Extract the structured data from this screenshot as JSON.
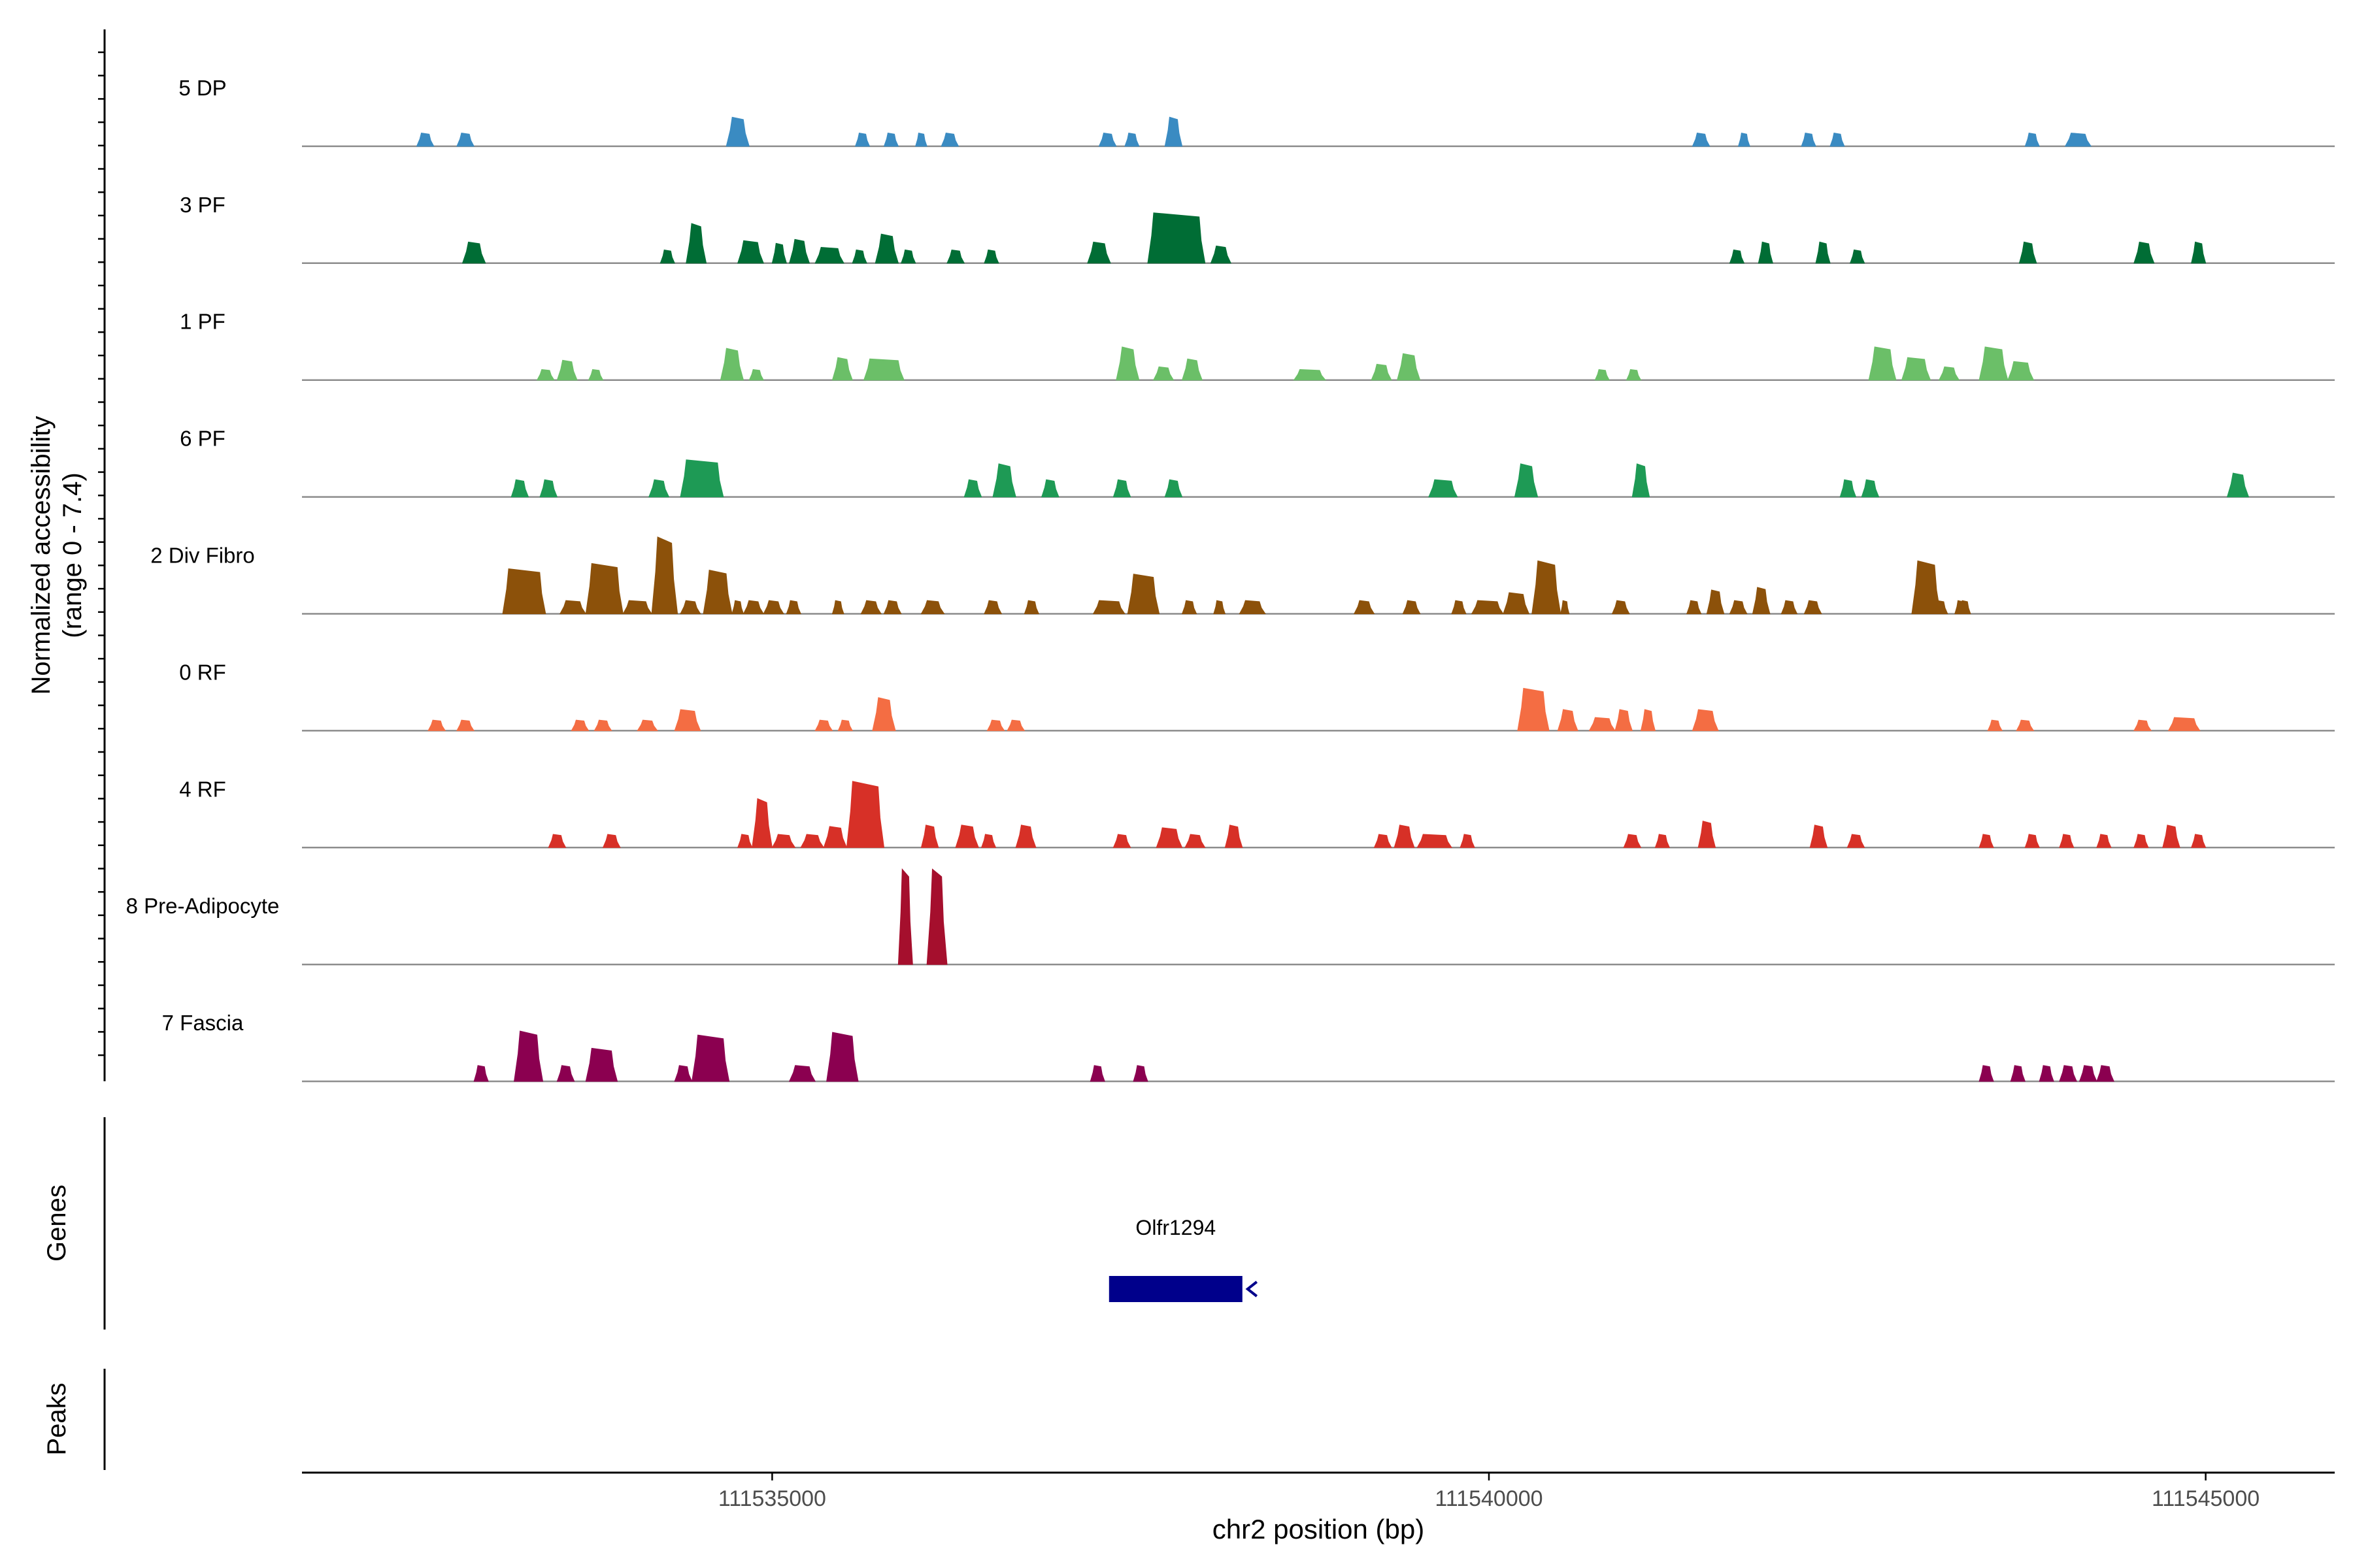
{
  "chart_data": {
    "type": "coverage",
    "title": "",
    "ylabel": "Normalized accessibility",
    "ylabel_range": "(range 0 - 7.4)",
    "ylim": [
      0,
      7.4
    ],
    "xlabel": "chr2 position (bp)",
    "xlim": [
      111531720,
      111545900
    ],
    "x_ticks": [
      111535000,
      111540000,
      111545000
    ],
    "x_tick_labels": [
      "111535000",
      "111540000",
      "111545000"
    ],
    "genes_label": "Genes",
    "peaks_label": "Peaks",
    "genes": [
      {
        "name": "Olfr1294",
        "start": 111537350,
        "end": 111538280,
        "strand": "-",
        "color": "#00008B"
      }
    ],
    "series": [
      {
        "name": "5 DP",
        "color": "#3A8BC2",
        "peaks": [
          [
            111532520,
            111532640,
            1.0
          ],
          [
            111532800,
            111532920,
            1.0
          ],
          [
            111534680,
            111534840,
            2.2
          ],
          [
            111535580,
            111535680,
            1.0
          ],
          [
            111535780,
            111535880,
            1.0
          ],
          [
            111536000,
            111536080,
            1.0
          ],
          [
            111536180,
            111536300,
            1.0
          ],
          [
            111537280,
            111537400,
            1.0
          ],
          [
            111537460,
            111537560,
            1.0
          ],
          [
            111537740,
            111537860,
            2.2
          ],
          [
            111541420,
            111541540,
            1.0
          ],
          [
            111541740,
            111541820,
            1.0
          ],
          [
            111542180,
            111542280,
            1.0
          ],
          [
            111542380,
            111542480,
            1.0
          ],
          [
            111543740,
            111543840,
            1.0
          ],
          [
            111544020,
            111544200,
            1.0
          ]
        ]
      },
      {
        "name": "3 PF",
        "color": "#006D35",
        "peaks": [
          [
            111532840,
            111533000,
            1.6
          ],
          [
            111534220,
            111534320,
            1.0
          ],
          [
            111534400,
            111534540,
            3.0
          ],
          [
            111534760,
            111534940,
            1.7
          ],
          [
            111535000,
            111535100,
            1.5
          ],
          [
            111535120,
            111535260,
            1.8
          ],
          [
            111535300,
            111535500,
            1.2
          ],
          [
            111535560,
            111535660,
            1.0
          ],
          [
            111535720,
            111535880,
            2.2
          ],
          [
            111535900,
            111536000,
            1.0
          ],
          [
            111536220,
            111536340,
            1.0
          ],
          [
            111536480,
            111536580,
            1.0
          ],
          [
            111537200,
            111537360,
            1.6
          ],
          [
            111537620,
            111538020,
            3.8
          ],
          [
            111538060,
            111538200,
            1.3
          ],
          [
            111541680,
            111541780,
            1.0
          ],
          [
            111541880,
            111541980,
            1.6
          ],
          [
            111542280,
            111542380,
            1.6
          ],
          [
            111542520,
            111542620,
            1.0
          ],
          [
            111543700,
            111543820,
            1.6
          ],
          [
            111544500,
            111544640,
            1.6
          ],
          [
            111544900,
            111545000,
            1.6
          ]
        ]
      },
      {
        "name": "1 PF",
        "color": "#6BBF68",
        "peaks": [
          [
            111533360,
            111533480,
            0.8
          ],
          [
            111533500,
            111533640,
            1.5
          ],
          [
            111533720,
            111533820,
            0.8
          ],
          [
            111534640,
            111534800,
            2.4
          ],
          [
            111534840,
            111534940,
            0.8
          ],
          [
            111535420,
            111535560,
            1.7
          ],
          [
            111535640,
            111535920,
            1.6
          ],
          [
            111537400,
            111537560,
            2.5
          ],
          [
            111537660,
            111537800,
            1.0
          ],
          [
            111537860,
            111538000,
            1.6
          ],
          [
            111538640,
            111538860,
            0.8
          ],
          [
            111539180,
            111539320,
            1.2
          ],
          [
            111539360,
            111539520,
            2.0
          ],
          [
            111540740,
            111540840,
            0.8
          ],
          [
            111540960,
            111541060,
            0.8
          ],
          [
            111542650,
            111542840,
            2.5
          ],
          [
            111542880,
            111543080,
            1.7
          ],
          [
            111543140,
            111543280,
            1.0
          ],
          [
            111543420,
            111543620,
            2.5
          ],
          [
            111543620,
            111543800,
            1.4
          ]
        ]
      },
      {
        "name": "6 PF",
        "color": "#1E9A55",
        "peaks": [
          [
            111533180,
            111533300,
            1.3
          ],
          [
            111533380,
            111533500,
            1.3
          ],
          [
            111534140,
            111534280,
            1.3
          ],
          [
            111534360,
            111534660,
            2.8
          ],
          [
            111536340,
            111536460,
            1.3
          ],
          [
            111536540,
            111536700,
            2.5
          ],
          [
            111536880,
            111537000,
            1.3
          ],
          [
            111537380,
            111537500,
            1.3
          ],
          [
            111537740,
            111537860,
            1.3
          ],
          [
            111539580,
            111539780,
            1.3
          ],
          [
            111540180,
            111540340,
            2.5
          ],
          [
            111541000,
            111541120,
            2.5
          ],
          [
            111542450,
            111542560,
            1.3
          ],
          [
            111542600,
            111542720,
            1.3
          ],
          [
            111545150,
            111545300,
            1.8
          ]
        ]
      },
      {
        "name": "2 Div Fibro",
        "color": "#8C510A",
        "peaks": [
          [
            111533120,
            111533420,
            3.4
          ],
          [
            111533520,
            111533700,
            1.0
          ],
          [
            111533700,
            111533960,
            3.8
          ],
          [
            111533960,
            111534160,
            1.0
          ],
          [
            111534160,
            111534340,
            5.8
          ],
          [
            111534360,
            111534500,
            1.0
          ],
          [
            111534520,
            111534720,
            3.3
          ],
          [
            111534720,
            111534800,
            1.0
          ],
          [
            111534800,
            111534940,
            1.0
          ],
          [
            111534940,
            111535080,
            1.0
          ],
          [
            111535100,
            111535200,
            1.0
          ],
          [
            111535420,
            111535500,
            1.0
          ],
          [
            111535620,
            111535760,
            1.0
          ],
          [
            111535780,
            111535900,
            1.0
          ],
          [
            111536040,
            111536200,
            1.0
          ],
          [
            111536480,
            111536600,
            1.0
          ],
          [
            111536760,
            111536860,
            1.0
          ],
          [
            111537240,
            111537460,
            1.0
          ],
          [
            111537480,
            111537700,
            3.0
          ],
          [
            111537860,
            111537960,
            1.0
          ],
          [
            111538080,
            111538160,
            1.0
          ],
          [
            111538260,
            111538440,
            1.0
          ],
          [
            111539060,
            111539200,
            1.0
          ],
          [
            111539400,
            111539520,
            1.0
          ],
          [
            111539740,
            111539840,
            1.0
          ],
          [
            111539880,
            111540100,
            1.0
          ],
          [
            111540100,
            111540280,
            1.6
          ],
          [
            111540300,
            111540500,
            4.0
          ],
          [
            111540500,
            111540560,
            1.0
          ],
          [
            111540860,
            111540980,
            1.0
          ],
          [
            111541380,
            111541480,
            1.0
          ],
          [
            111541520,
            111541640,
            1.8
          ],
          [
            111541680,
            111541800,
            1.0
          ],
          [
            111541840,
            111541960,
            2.0
          ],
          [
            111542040,
            111542150,
            1.0
          ],
          [
            111542200,
            111542320,
            1.0
          ],
          [
            111542950,
            111543150,
            4.0
          ],
          [
            111543250,
            111543330,
            1.0
          ],
          [
            111543100,
            111543200,
            1.0
          ],
          [
            111543280,
            111543360,
            1.0
          ]
        ]
      },
      {
        "name": "0 RF",
        "color": "#F46D43",
        "peaks": [
          [
            111532600,
            111532720,
            0.8
          ],
          [
            111532800,
            111532920,
            0.8
          ],
          [
            111533600,
            111533720,
            0.8
          ],
          [
            111533760,
            111533880,
            0.8
          ],
          [
            111534060,
            111534200,
            0.8
          ],
          [
            111534320,
            111534500,
            1.6
          ],
          [
            111535300,
            111535420,
            0.8
          ],
          [
            111535460,
            111535560,
            0.8
          ],
          [
            111535700,
            111535860,
            2.5
          ],
          [
            111536500,
            111536620,
            0.8
          ],
          [
            111536640,
            111536760,
            0.8
          ],
          [
            111540200,
            111540420,
            3.2
          ],
          [
            111540480,
            111540620,
            1.6
          ],
          [
            111540700,
            111540880,
            1.0
          ],
          [
            111540880,
            111541000,
            1.6
          ],
          [
            111541060,
            111541160,
            1.6
          ],
          [
            111541420,
            111541600,
            1.6
          ],
          [
            111543480,
            111543580,
            0.8
          ],
          [
            111543680,
            111543800,
            0.8
          ],
          [
            111544500,
            111544620,
            0.8
          ],
          [
            111544740,
            111544960,
            1.0
          ]
        ]
      },
      {
        "name": "4 RF",
        "color": "#D73027",
        "peaks": [
          [
            111533440,
            111533560,
            1.0
          ],
          [
            111533820,
            111533940,
            1.0
          ],
          [
            111534760,
            111534860,
            1.0
          ],
          [
            111534860,
            111535000,
            3.7
          ],
          [
            111535000,
            111535160,
            1.0
          ],
          [
            111535200,
            111535360,
            1.0
          ],
          [
            111535360,
            111535520,
            1.6
          ],
          [
            111535520,
            111535780,
            5.0
          ],
          [
            111536040,
            111536160,
            1.7
          ],
          [
            111536280,
            111536440,
            1.7
          ],
          [
            111536460,
            111536560,
            1.0
          ],
          [
            111536700,
            111536840,
            1.7
          ],
          [
            111537380,
            111537500,
            1.0
          ],
          [
            111537680,
            111537860,
            1.5
          ],
          [
            111537880,
            111538020,
            1.0
          ],
          [
            111538160,
            111538280,
            1.7
          ],
          [
            111539200,
            111539320,
            1.0
          ],
          [
            111539340,
            111539480,
            1.7
          ],
          [
            111539500,
            111539740,
            1.0
          ],
          [
            111539800,
            111539900,
            1.0
          ],
          [
            111540940,
            111541060,
            1.0
          ],
          [
            111541160,
            111541260,
            1.0
          ],
          [
            111541460,
            111541580,
            2.0
          ],
          [
            111542240,
            111542360,
            1.7
          ],
          [
            111542500,
            111542620,
            1.0
          ],
          [
            111543420,
            111543520,
            1.0
          ],
          [
            111543740,
            111543840,
            1.0
          ],
          [
            111543980,
            111544080,
            1.0
          ],
          [
            111544240,
            111544340,
            1.0
          ],
          [
            111544500,
            111544600,
            1.0
          ],
          [
            111544700,
            111544820,
            1.7
          ],
          [
            111544900,
            111545000,
            1.0
          ]
        ]
      },
      {
        "name": "8 Pre-Adipocyte",
        "color": "#A50F2D",
        "peaks": [
          [
            111535880,
            111535980,
            7.2
          ],
          [
            111536080,
            111536220,
            7.2
          ]
        ]
      },
      {
        "name": "7 Fascia",
        "color": "#8B0050",
        "peaks": [
          [
            111532920,
            111533020,
            1.2
          ],
          [
            111533200,
            111533400,
            3.8
          ],
          [
            111533500,
            111533620,
            1.2
          ],
          [
            111533700,
            111533920,
            2.5
          ],
          [
            111534320,
            111534440,
            1.2
          ],
          [
            111534440,
            111534700,
            3.5
          ],
          [
            111535120,
            111535300,
            1.2
          ],
          [
            111535380,
            111535600,
            3.7
          ],
          [
            111537220,
            111537320,
            1.2
          ],
          [
            111537520,
            111537620,
            1.2
          ],
          [
            111543420,
            111543520,
            1.2
          ],
          [
            111543640,
            111543740,
            1.2
          ],
          [
            111543840,
            111543940,
            1.2
          ],
          [
            111543980,
            111544100,
            1.2
          ],
          [
            111544120,
            111544240,
            1.2
          ],
          [
            111544240,
            111544360,
            1.2
          ]
        ]
      }
    ]
  }
}
